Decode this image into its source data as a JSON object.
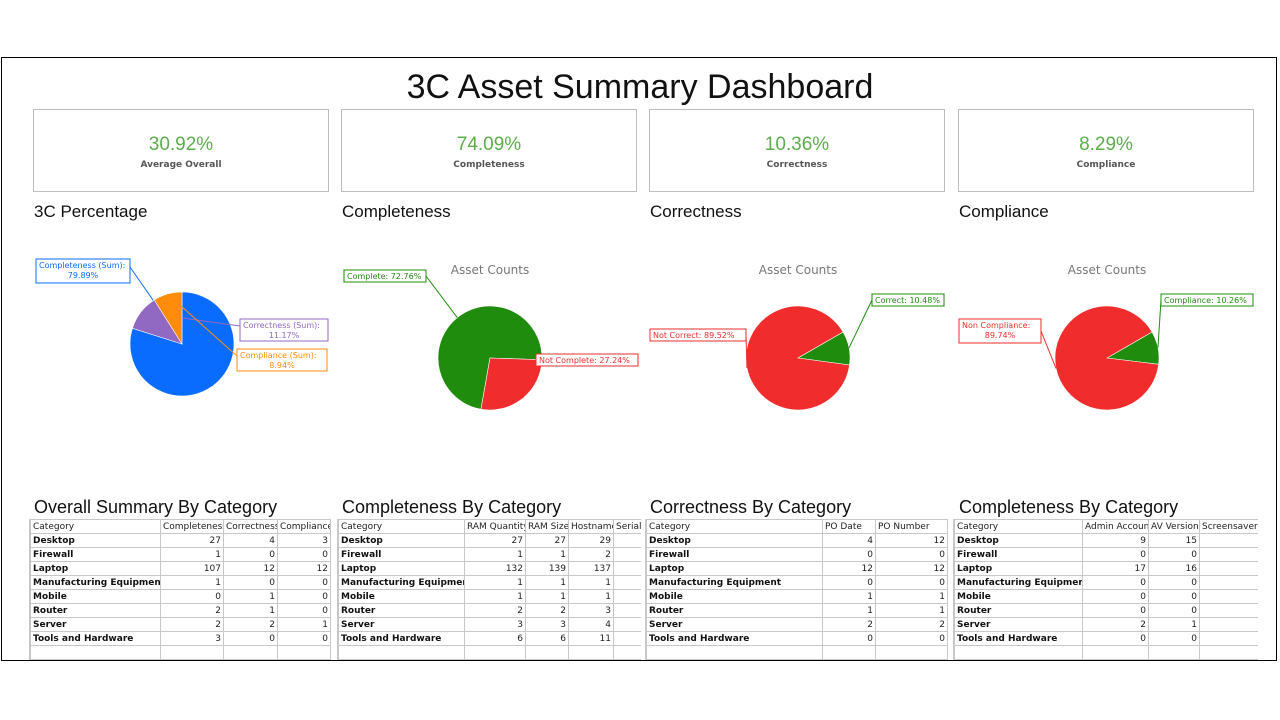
{
  "title": "3C Asset Summary Dashboard",
  "kpis": [
    {
      "value": "30.92%",
      "label": "Average Overall"
    },
    {
      "value": "74.09%",
      "label": "Completeness"
    },
    {
      "value": "10.36%",
      "label": "Correctness"
    },
    {
      "value": "8.29%",
      "label": "Compliance"
    }
  ],
  "sections": {
    "c3": "3C Percentage",
    "completeness": "Completeness",
    "correctness": "Correctness",
    "compliance": "Compliance"
  },
  "chart_data": [
    {
      "type": "pie",
      "title": "",
      "labels": [
        "Completeness (Sum)",
        "Correctness (Sum)",
        "Compliance (Sum)"
      ],
      "values": [
        79.89,
        11.17,
        8.94
      ],
      "colors": [
        "#0a6cff",
        "#9169c2",
        "#ff8c0a"
      ],
      "data_labels": [
        [
          "Completeness (Sum):",
          "79.89%"
        ],
        [
          "Correctness (Sum):",
          "11.17%"
        ],
        [
          "Compliance (Sum):",
          "8.94%"
        ]
      ]
    },
    {
      "type": "pie",
      "title": "Asset Counts",
      "labels": [
        "Complete",
        "Not Complete"
      ],
      "values": [
        72.76,
        27.24
      ],
      "colors": [
        "#1f8c0e",
        "#f02c2c"
      ],
      "data_labels": [
        [
          "Complete: 72.76%"
        ],
        [
          "Not Complete: 27.24%"
        ]
      ]
    },
    {
      "type": "pie",
      "title": "Asset Counts",
      "labels": [
        "Correct",
        "Not Correct"
      ],
      "values": [
        10.48,
        89.52
      ],
      "colors": [
        "#1f8c0e",
        "#f02c2c"
      ],
      "data_labels": [
        [
          "Correct: 10.48%"
        ],
        [
          "Not Correct: 89.52%"
        ]
      ]
    },
    {
      "type": "pie",
      "title": "Asset Counts",
      "labels": [
        "Compliance",
        "Non Compliance"
      ],
      "values": [
        10.26,
        89.74
      ],
      "colors": [
        "#1f8c0e",
        "#f02c2c"
      ],
      "data_labels": [
        [
          "Compliance: 10.26%"
        ],
        [
          "Non Compliance:",
          "89.74%"
        ]
      ]
    }
  ],
  "tables": [
    {
      "title": "Overall Summary By Category",
      "columns": [
        "Category",
        "Completeness",
        "Correctness",
        "Compliance"
      ],
      "rows": [
        [
          "Desktop",
          "27",
          "4",
          "3"
        ],
        [
          "Firewall",
          "1",
          "0",
          "0"
        ],
        [
          "Laptop",
          "107",
          "12",
          "12"
        ],
        [
          "Manufacturing Equipment",
          "1",
          "0",
          "0"
        ],
        [
          "Mobile",
          "0",
          "1",
          "0"
        ],
        [
          "Router",
          "2",
          "1",
          "0"
        ],
        [
          "Server",
          "2",
          "2",
          "1"
        ],
        [
          "Tools and Hardware",
          "3",
          "0",
          "0"
        ]
      ]
    },
    {
      "title": "Completeness By Category",
      "columns": [
        "Category",
        "RAM Quantity",
        "RAM Size",
        "Hostname",
        "Serial"
      ],
      "rows": [
        [
          "Desktop",
          "27",
          "27",
          "29",
          ""
        ],
        [
          "Firewall",
          "1",
          "1",
          "2",
          ""
        ],
        [
          "Laptop",
          "132",
          "139",
          "137",
          ""
        ],
        [
          "Manufacturing Equipment",
          "1",
          "1",
          "1",
          ""
        ],
        [
          "Mobile",
          "1",
          "1",
          "1",
          ""
        ],
        [
          "Router",
          "2",
          "2",
          "3",
          ""
        ],
        [
          "Server",
          "3",
          "3",
          "4",
          ""
        ],
        [
          "Tools and Hardware",
          "6",
          "6",
          "11",
          ""
        ]
      ]
    },
    {
      "title": "Correctness By Category",
      "columns": [
        "Category",
        "PO Date",
        "PO Number"
      ],
      "rows": [
        [
          "Desktop",
          "4",
          "12"
        ],
        [
          "Firewall",
          "0",
          "0"
        ],
        [
          "Laptop",
          "12",
          "12"
        ],
        [
          "Manufacturing Equipment",
          "0",
          "0"
        ],
        [
          "Mobile",
          "1",
          "1"
        ],
        [
          "Router",
          "1",
          "1"
        ],
        [
          "Server",
          "2",
          "2"
        ],
        [
          "Tools and Hardware",
          "0",
          "0"
        ]
      ]
    },
    {
      "title": "Completeness By Category",
      "columns": [
        "Category",
        "Admin Account",
        "AV Version",
        "Screensaver S"
      ],
      "rows": [
        [
          "Desktop",
          "9",
          "15",
          ""
        ],
        [
          "Firewall",
          "0",
          "0",
          ""
        ],
        [
          "Laptop",
          "17",
          "16",
          ""
        ],
        [
          "Manufacturing Equipment",
          "0",
          "0",
          ""
        ],
        [
          "Mobile",
          "0",
          "0",
          ""
        ],
        [
          "Router",
          "0",
          "0",
          ""
        ],
        [
          "Server",
          "2",
          "1",
          ""
        ],
        [
          "Tools and Hardware",
          "0",
          "0",
          ""
        ]
      ]
    }
  ]
}
